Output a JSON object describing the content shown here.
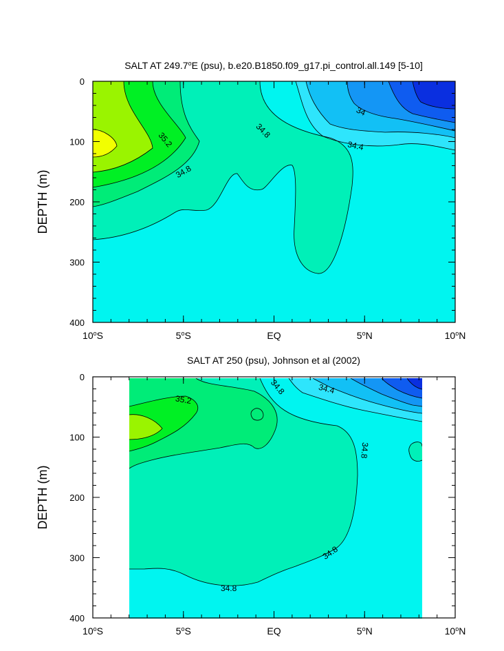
{
  "colors": {
    "s33_6": "#0a2fe0",
    "s33_8": "#0f5cf0",
    "s34_0": "#1496f5",
    "s34_2": "#12c0f5",
    "s34_4": "#2ee5fc",
    "s34_6": "#00f5f0",
    "s34_8": "#00f0b8",
    "s35_0": "#00ec78",
    "s35_2": "#00f024",
    "s35_4": "#9af400",
    "s35_6": "#f2ff00"
  },
  "chart_data": [
    {
      "type": "contour",
      "title_parts": [
        "SALT AT 249.7",
        "o",
        "E (psu), b.e20.B1850.f09_g17.pi_control.all.149 [5-10]"
      ],
      "ylabel": "DEPTH (m)",
      "xlim": [
        -10,
        10
      ],
      "ylim": [
        400,
        0
      ],
      "x_ticks": [
        {
          "value": -10,
          "label": "10",
          "suffix": "S"
        },
        {
          "value": -5,
          "label": "5",
          "suffix": "S"
        },
        {
          "value": 0,
          "label": "EQ",
          "suffix": ""
        },
        {
          "value": 5,
          "label": "5",
          "suffix": "N"
        },
        {
          "value": 10,
          "label": "10",
          "suffix": "N"
        }
      ],
      "y_ticks": [
        0,
        100,
        200,
        300,
        400
      ],
      "contour_labels": [
        {
          "text": "34",
          "x": 4.8,
          "y": 50,
          "rotate": 25
        },
        {
          "text": "34.8",
          "x": -0.6,
          "y": 82,
          "rotate": 45
        },
        {
          "text": "34.4",
          "x": 4.5,
          "y": 107,
          "rotate": 12
        },
        {
          "text": "35.2",
          "x": -6.0,
          "y": 97,
          "rotate": 50
        },
        {
          "text": "34.8",
          "x": -5.0,
          "y": 150,
          "rotate": -30
        }
      ]
    },
    {
      "type": "contour",
      "title_parts": [
        "SALT AT 250 (psu), Johnson et al (2002)"
      ],
      "ylabel": "DEPTH (m)",
      "xlim": [
        -10,
        10
      ],
      "ylim": [
        400,
        0
      ],
      "data_x_range": [
        -8,
        8.2
      ],
      "x_ticks": [
        {
          "value": -10,
          "label": "10",
          "suffix": "S"
        },
        {
          "value": -5,
          "label": "5",
          "suffix": "S"
        },
        {
          "value": 0,
          "label": "EQ",
          "suffix": ""
        },
        {
          "value": 5,
          "label": "5",
          "suffix": "N"
        },
        {
          "value": 10,
          "label": "10",
          "suffix": "N"
        }
      ],
      "y_ticks": [
        0,
        100,
        200,
        300,
        400
      ],
      "contour_labels": [
        {
          "text": "34.8",
          "x": 0.2,
          "y": 17,
          "rotate": 50
        },
        {
          "text": "34.4",
          "x": 2.9,
          "y": 20,
          "rotate": 15
        },
        {
          "text": "35.2",
          "x": -5.0,
          "y": 38,
          "rotate": 10
        },
        {
          "text": "34.8",
          "x": 5.0,
          "y": 122,
          "rotate": 95
        },
        {
          "text": "34.8",
          "x": 3.1,
          "y": 292,
          "rotate": -35
        },
        {
          "text": "34.8",
          "x": -2.5,
          "y": 351,
          "rotate": 0
        }
      ]
    }
  ]
}
